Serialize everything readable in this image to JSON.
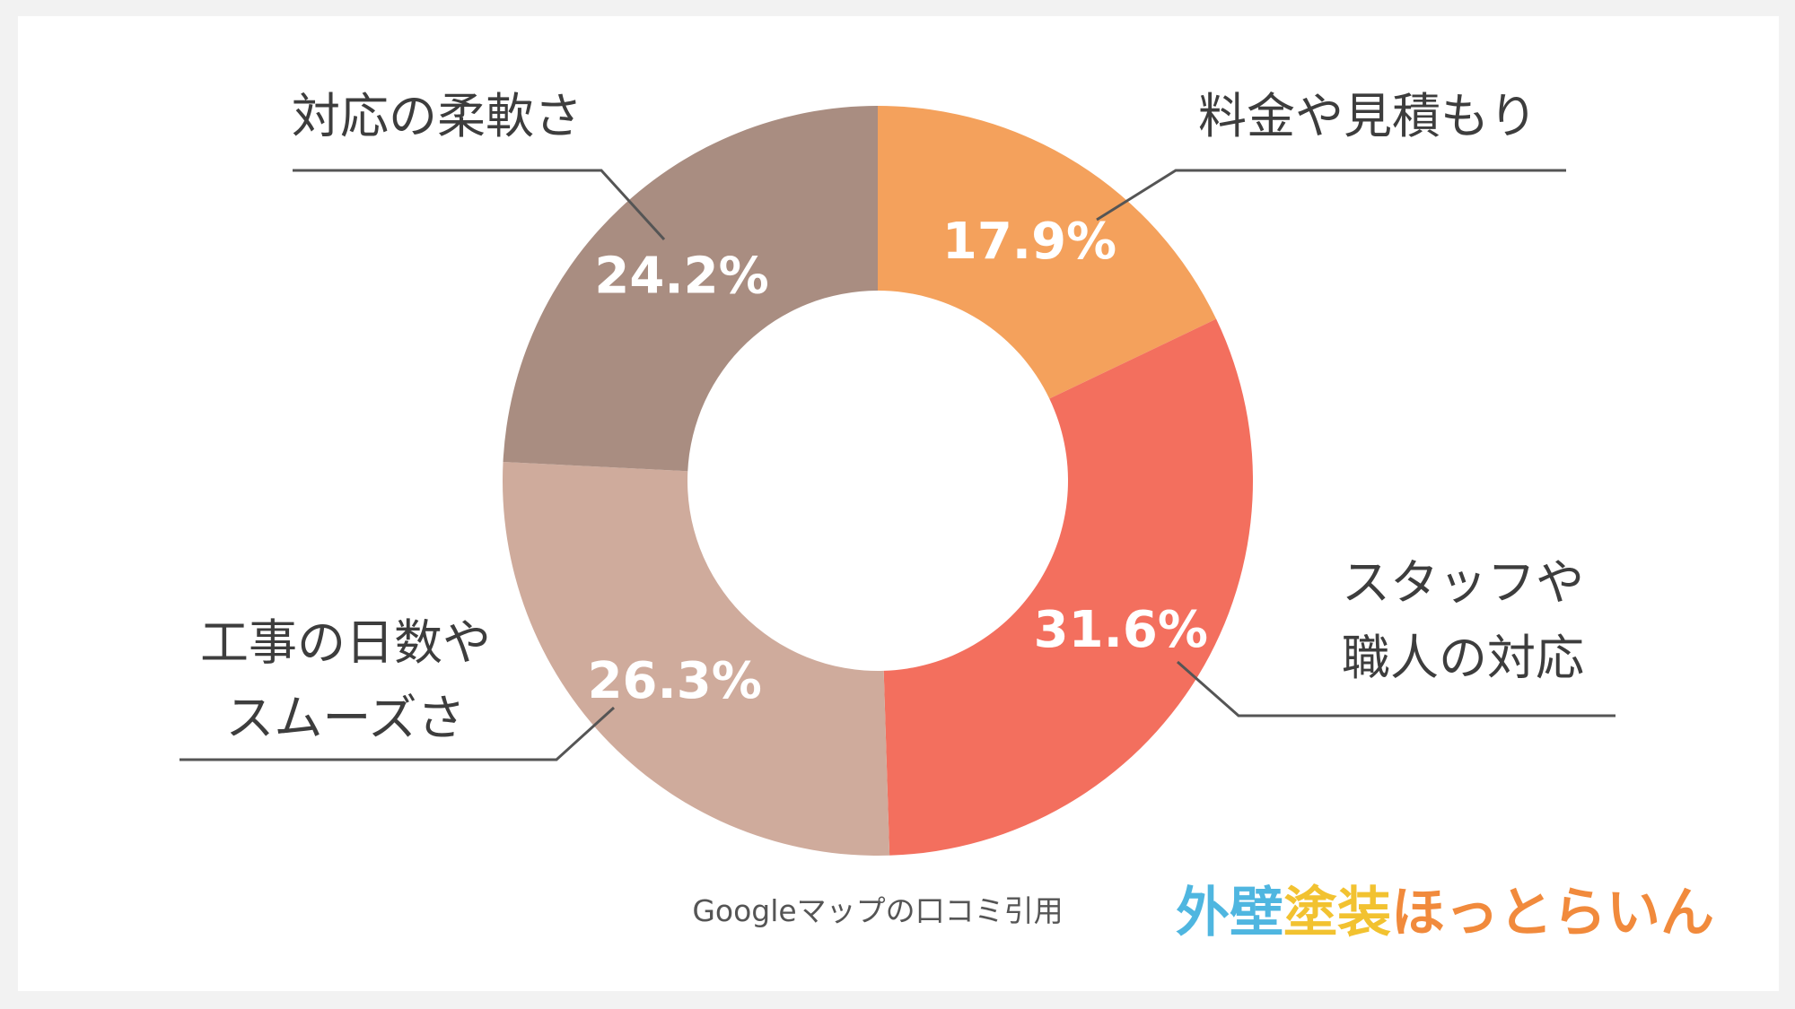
{
  "chart_data": {
    "type": "pie",
    "variant": "donut",
    "categories": [
      "料金や見積もり",
      "スタッフや職人の対応",
      "工事の日数やスムーズさ",
      "対応の柔軟さ"
    ],
    "category_lines": [
      [
        "料金や見積もり"
      ],
      [
        "スタッフや",
        "職人の対応"
      ],
      [
        "工事の日数や",
        "スムーズさ"
      ],
      [
        "対応の柔軟さ"
      ]
    ],
    "values": [
      17.9,
      31.6,
      26.3,
      24.2
    ],
    "value_labels": [
      "17.9%",
      "31.6%",
      "26.3%",
      "24.2%"
    ],
    "colors": [
      "#f4a15c",
      "#f36f5e",
      "#cfab9c",
      "#a98d81"
    ],
    "start_angle": "12 o'clock",
    "direction": "clockwise",
    "label_color": "#ffffff",
    "leader_line_color": "#555555"
  },
  "source_note": "Googleマップの口コミ引用",
  "logo": {
    "text": "外壁塗装ほっとらいん",
    "parts": [
      {
        "text": "外壁",
        "color": "#4fb6e0"
      },
      {
        "text": "塗装",
        "color": "#f2c230"
      },
      {
        "text": "ほっとらいん",
        "color": "#f18a3c"
      }
    ]
  }
}
